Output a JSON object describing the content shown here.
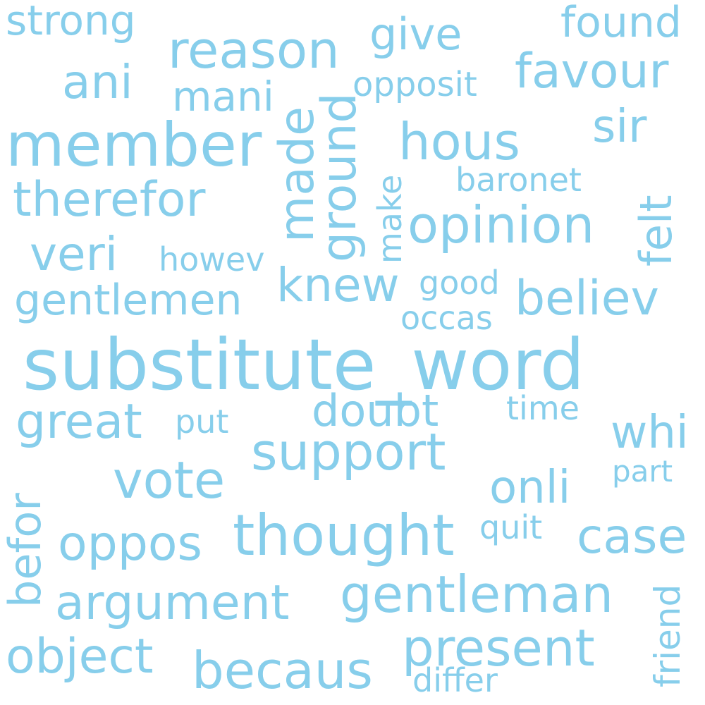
{
  "word_cloud": {
    "text_color": "#87ceeb",
    "background_color": "#ffffff",
    "words": {
      "substitute_word": "substitute_word",
      "member": "member",
      "thought": "thought",
      "gentleman": "gentleman",
      "support": "support",
      "reason": "reason",
      "opinion": "opinion",
      "hous": "hous",
      "vote": "vote",
      "present": "present",
      "becaus": "becaus",
      "therefor": "therefor",
      "favour": "favour",
      "believ": "believ",
      "argument": "argument",
      "oppos": "oppos",
      "object": "object",
      "great": "great",
      "case": "case",
      "knew": "knew",
      "veri": "veri",
      "ani": "ani",
      "onli": "onli",
      "sir": "sir",
      "whi": "whi",
      "give": "give",
      "doubt": "doubt",
      "gentlemen": "gentlemen",
      "found": "found",
      "strong": "strong",
      "mani": "mani",
      "opposit": "opposit",
      "baronet": "baronet",
      "howev": "howev",
      "good": "good",
      "occas": "occas",
      "differ": "differ",
      "quit": "quit",
      "put": "put",
      "time": "time",
      "part": "part",
      "ground": "ground",
      "made": "made",
      "felt": "felt",
      "befor": "befor",
      "make": "make",
      "friend": "friend"
    }
  }
}
